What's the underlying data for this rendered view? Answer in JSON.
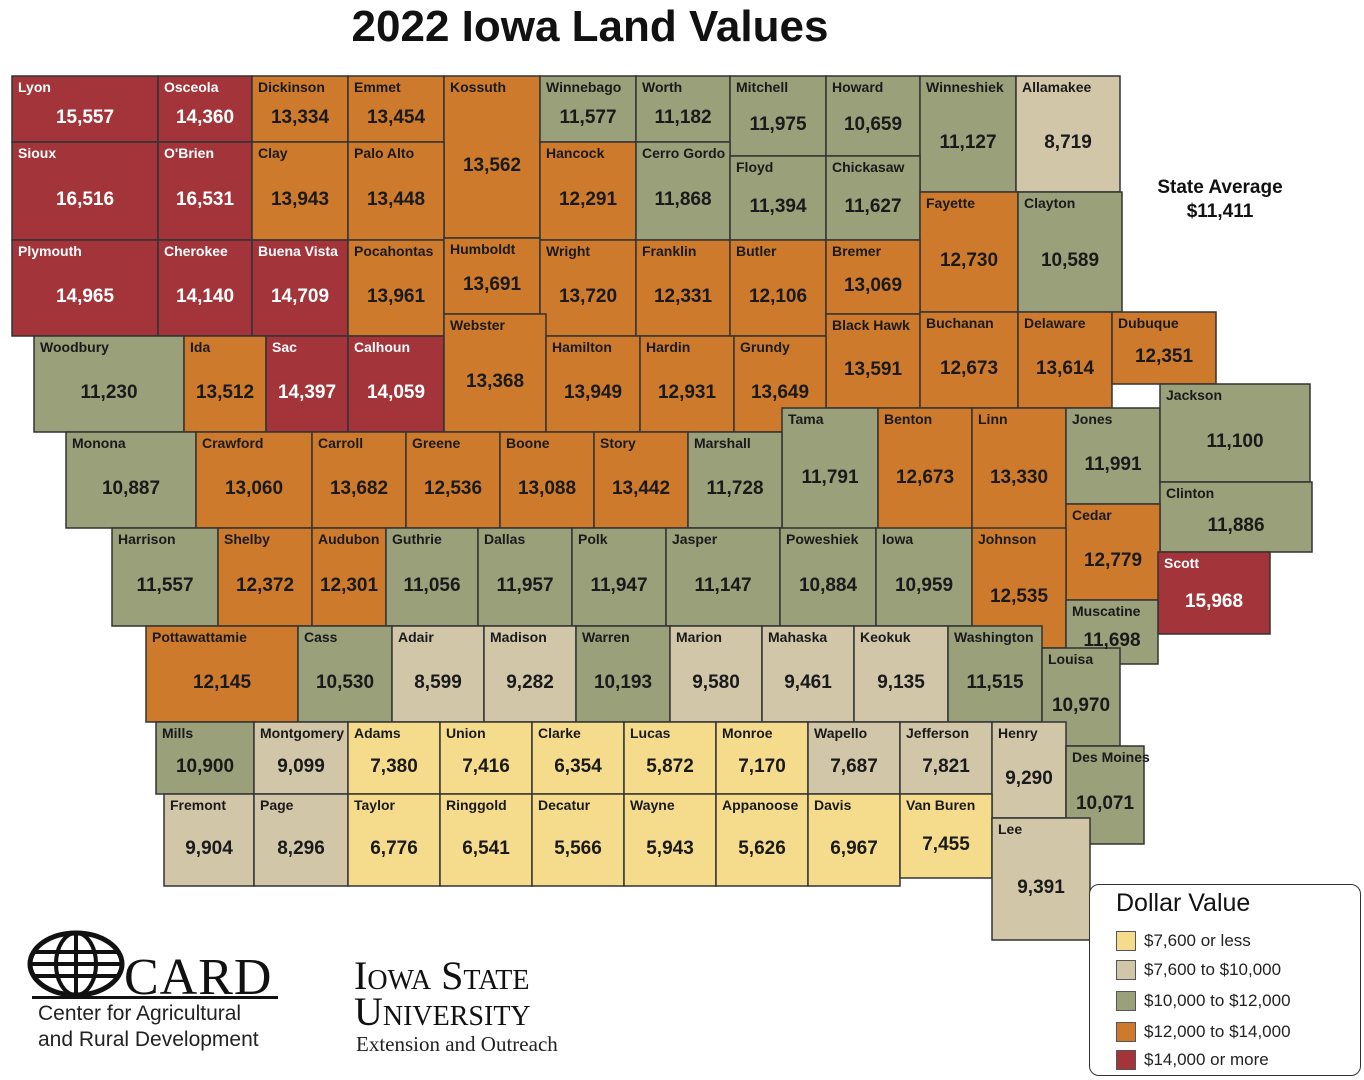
{
  "title": "2022 Iowa Land Values",
  "state_average": {
    "label": "State Average",
    "value": "$11,411"
  },
  "legend": {
    "title": "Dollar Value",
    "items": [
      {
        "label": "$7,600 or less",
        "color": "#f5dc8c"
      },
      {
        "label": "$7,600 to $10,000",
        "color": "#d2c6a9"
      },
      {
        "label": "$10,000 to $12,000",
        "color": "#9aa07a"
      },
      {
        "label": "$12,000 to $14,000",
        "color": "#cd7a2c"
      },
      {
        "label": "$14,000 or more",
        "color": "#a3343a"
      }
    ]
  },
  "colors": {
    "tier1": "#f5dc8c",
    "tier2": "#d2c6a9",
    "tier3": "#9aa07a",
    "tier4": "#cd7a2c",
    "tier5": "#a3343a",
    "border": "#333333"
  },
  "counties": [
    {
      "name": "Lyon",
      "value": "15,557",
      "tier": 5
    },
    {
      "name": "Osceola",
      "value": "14,360",
      "tier": 5
    },
    {
      "name": "Dickinson",
      "value": "13,334",
      "tier": 4
    },
    {
      "name": "Emmet",
      "value": "13,454",
      "tier": 4
    },
    {
      "name": "Kossuth",
      "value": "13,562",
      "tier": 4
    },
    {
      "name": "Winnebago",
      "value": "11,577",
      "tier": 3
    },
    {
      "name": "Worth",
      "value": "11,182",
      "tier": 3
    },
    {
      "name": "Mitchell",
      "value": "11,975",
      "tier": 3
    },
    {
      "name": "Howard",
      "value": "10,659",
      "tier": 3
    },
    {
      "name": "Winneshiek",
      "value": "11,127",
      "tier": 3
    },
    {
      "name": "Allamakee",
      "value": "8,719",
      "tier": 2
    },
    {
      "name": "Sioux",
      "value": "16,516",
      "tier": 5
    },
    {
      "name": "O'Brien",
      "value": "16,531",
      "tier": 5
    },
    {
      "name": "Clay",
      "value": "13,943",
      "tier": 4
    },
    {
      "name": "Palo Alto",
      "value": "13,448",
      "tier": 4
    },
    {
      "name": "Hancock",
      "value": "12,291",
      "tier": 4
    },
    {
      "name": "Cerro Gordo",
      "value": "11,868",
      "tier": 3
    },
    {
      "name": "Floyd",
      "value": "11,394",
      "tier": 3
    },
    {
      "name": "Chickasaw",
      "value": "11,627",
      "tier": 3
    },
    {
      "name": "Fayette",
      "value": "12,730",
      "tier": 4
    },
    {
      "name": "Clayton",
      "value": "10,589",
      "tier": 3
    },
    {
      "name": "Plymouth",
      "value": "14,965",
      "tier": 5
    },
    {
      "name": "Cherokee",
      "value": "14,140",
      "tier": 5
    },
    {
      "name": "Buena Vista",
      "value": "14,709",
      "tier": 5
    },
    {
      "name": "Pocahontas",
      "value": "13,961",
      "tier": 4
    },
    {
      "name": "Humboldt",
      "value": "13,691",
      "tier": 4
    },
    {
      "name": "Wright",
      "value": "13,720",
      "tier": 4
    },
    {
      "name": "Franklin",
      "value": "12,331",
      "tier": 4
    },
    {
      "name": "Butler",
      "value": "12,106",
      "tier": 4
    },
    {
      "name": "Bremer",
      "value": "13,069",
      "tier": 4
    },
    {
      "name": "Black Hawk",
      "value": "13,591",
      "tier": 4
    },
    {
      "name": "Buchanan",
      "value": "12,673",
      "tier": 4
    },
    {
      "name": "Delaware",
      "value": "13,614",
      "tier": 4
    },
    {
      "name": "Dubuque",
      "value": "12,351",
      "tier": 4
    },
    {
      "name": "Woodbury",
      "value": "11,230",
      "tier": 3
    },
    {
      "name": "Ida",
      "value": "13,512",
      "tier": 4
    },
    {
      "name": "Sac",
      "value": "14,397",
      "tier": 5
    },
    {
      "name": "Calhoun",
      "value": "14,059",
      "tier": 5
    },
    {
      "name": "Webster",
      "value": "13,368",
      "tier": 4
    },
    {
      "name": "Hamilton",
      "value": "13,949",
      "tier": 4
    },
    {
      "name": "Hardin",
      "value": "12,931",
      "tier": 4
    },
    {
      "name": "Grundy",
      "value": "13,649",
      "tier": 4
    },
    {
      "name": "Tama",
      "value": "11,791",
      "tier": 3
    },
    {
      "name": "Benton",
      "value": "12,673",
      "tier": 4
    },
    {
      "name": "Linn",
      "value": "13,330",
      "tier": 4
    },
    {
      "name": "Jones",
      "value": "11,991",
      "tier": 3
    },
    {
      "name": "Jackson",
      "value": "11,100",
      "tier": 3
    },
    {
      "name": "Monona",
      "value": "10,887",
      "tier": 3
    },
    {
      "name": "Crawford",
      "value": "13,060",
      "tier": 4
    },
    {
      "name": "Carroll",
      "value": "13,682",
      "tier": 4
    },
    {
      "name": "Greene",
      "value": "12,536",
      "tier": 4
    },
    {
      "name": "Boone",
      "value": "13,088",
      "tier": 4
    },
    {
      "name": "Story",
      "value": "13,442",
      "tier": 4
    },
    {
      "name": "Marshall",
      "value": "11,728",
      "tier": 3
    },
    {
      "name": "Clinton",
      "value": "11,886",
      "tier": 3
    },
    {
      "name": "Cedar",
      "value": "12,779",
      "tier": 4
    },
    {
      "name": "Harrison",
      "value": "11,557",
      "tier": 3
    },
    {
      "name": "Shelby",
      "value": "12,372",
      "tier": 4
    },
    {
      "name": "Audubon",
      "value": "12,301",
      "tier": 4
    },
    {
      "name": "Guthrie",
      "value": "11,056",
      "tier": 3
    },
    {
      "name": "Dallas",
      "value": "11,957",
      "tier": 3
    },
    {
      "name": "Polk",
      "value": "11,947",
      "tier": 3
    },
    {
      "name": "Jasper",
      "value": "11,147",
      "tier": 3
    },
    {
      "name": "Poweshiek",
      "value": "10,884",
      "tier": 3
    },
    {
      "name": "Iowa",
      "value": "10,959",
      "tier": 3
    },
    {
      "name": "Johnson",
      "value": "12,535",
      "tier": 4
    },
    {
      "name": "Scott",
      "value": "15,968",
      "tier": 5
    },
    {
      "name": "Muscatine",
      "value": "11,698",
      "tier": 3
    },
    {
      "name": "Pottawattamie",
      "value": "12,145",
      "tier": 4
    },
    {
      "name": "Cass",
      "value": "10,530",
      "tier": 3
    },
    {
      "name": "Adair",
      "value": "8,599",
      "tier": 2
    },
    {
      "name": "Madison",
      "value": "9,282",
      "tier": 2
    },
    {
      "name": "Warren",
      "value": "10,193",
      "tier": 3
    },
    {
      "name": "Marion",
      "value": "9,580",
      "tier": 2
    },
    {
      "name": "Mahaska",
      "value": "9,461",
      "tier": 2
    },
    {
      "name": "Keokuk",
      "value": "9,135",
      "tier": 2
    },
    {
      "name": "Washington",
      "value": "11,515",
      "tier": 3
    },
    {
      "name": "Louisa",
      "value": "10,970",
      "tier": 3
    },
    {
      "name": "Mills",
      "value": "10,900",
      "tier": 3
    },
    {
      "name": "Montgomery",
      "value": "9,099",
      "tier": 2
    },
    {
      "name": "Adams",
      "value": "7,380",
      "tier": 1
    },
    {
      "name": "Union",
      "value": "7,416",
      "tier": 1
    },
    {
      "name": "Clarke",
      "value": "6,354",
      "tier": 1
    },
    {
      "name": "Lucas",
      "value": "5,872",
      "tier": 1
    },
    {
      "name": "Monroe",
      "value": "7,170",
      "tier": 1
    },
    {
      "name": "Wapello",
      "value": "7,687",
      "tier": 2
    },
    {
      "name": "Jefferson",
      "value": "7,821",
      "tier": 2
    },
    {
      "name": "Henry",
      "value": "9,290",
      "tier": 2
    },
    {
      "name": "Des Moines",
      "value": "10,071",
      "tier": 3
    },
    {
      "name": "Fremont",
      "value": "9,904",
      "tier": 2
    },
    {
      "name": "Page",
      "value": "8,296",
      "tier": 2
    },
    {
      "name": "Taylor",
      "value": "6,776",
      "tier": 1
    },
    {
      "name": "Ringgold",
      "value": "6,541",
      "tier": 1
    },
    {
      "name": "Decatur",
      "value": "5,566",
      "tier": 1
    },
    {
      "name": "Wayne",
      "value": "5,943",
      "tier": 1
    },
    {
      "name": "Appanoose",
      "value": "5,626",
      "tier": 1
    },
    {
      "name": "Davis",
      "value": "6,967",
      "tier": 1
    },
    {
      "name": "Van Buren",
      "value": "7,455",
      "tier": 1
    },
    {
      "name": "Lee",
      "value": "9,391",
      "tier": 2
    }
  ],
  "logos": {
    "card_word": "CARD",
    "card_line1": "Center for Agricultural",
    "card_line2": "and Rural Development",
    "isu_line1": "Iowa State",
    "isu_line2": "University",
    "isu_line3": "Extension and Outreach"
  }
}
